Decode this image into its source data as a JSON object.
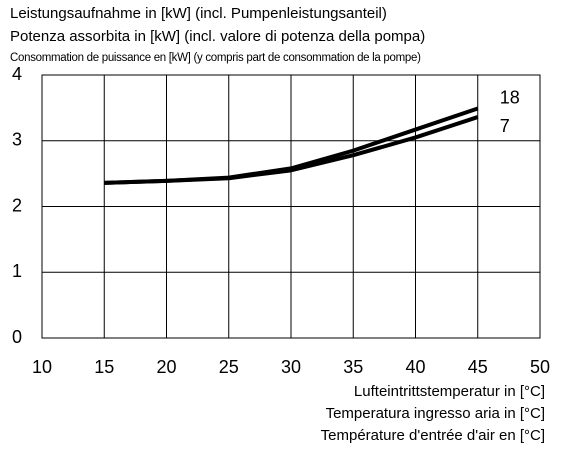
{
  "chart_data": {
    "type": "line",
    "title_lines": [
      "Leistungsaufnahme in [kW] (incl. Pumpenleistungsanteil)",
      "Potenza assorbita in [kW] (incl. valore di potenza della pompa)",
      "Consommation de puissance en [kW] (y compris part de consommation de la pompe)"
    ],
    "x_label_lines": [
      "Lufteintrittstemperatur in [°C]",
      "Temperatura ingresso aria in [°C]",
      "Température d'entrée d'air en [°C]"
    ],
    "x": [
      15,
      20,
      25,
      30,
      35,
      40,
      45
    ],
    "series": [
      {
        "name": "18",
        "color": "#000000",
        "values": [
          2.36,
          2.39,
          2.44,
          2.58,
          2.85,
          3.17,
          3.49
        ]
      },
      {
        "name": "7",
        "color": "#000000",
        "values": [
          2.36,
          2.39,
          2.43,
          2.55,
          2.78,
          3.05,
          3.36
        ]
      }
    ],
    "xlim": [
      10,
      50
    ],
    "xticks": [
      10,
      15,
      20,
      25,
      30,
      35,
      40,
      45,
      50
    ],
    "ylim": [
      0,
      4
    ],
    "yticks": [
      0,
      1,
      2,
      3,
      4
    ],
    "grid": true
  }
}
